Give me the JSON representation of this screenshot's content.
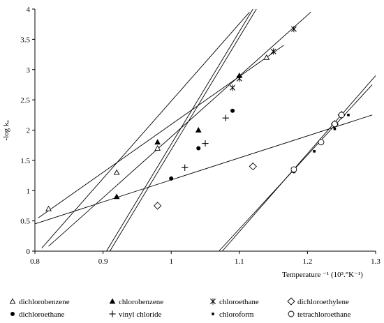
{
  "chart_data": {
    "type": "scatter",
    "ylabel": "-log kₒ",
    "xlabel": "Temperature ⁻¹ (10³.°K⁻¹)",
    "xlim": [
      0.8,
      1.3
    ],
    "ylim": [
      0,
      4
    ],
    "x_ticks": [
      "0.8",
      "0.9",
      "1",
      "1.1",
      "1.2",
      "1.3"
    ],
    "y_ticks": [
      "0",
      "0.5",
      "1",
      "1.5",
      "2",
      "2.5",
      "3",
      "3.5",
      "4"
    ],
    "grid": false,
    "legend_position": "bottom",
    "series": [
      {
        "name": "dichlorobenzene",
        "marker": "open-triangle",
        "points": [
          [
            0.82,
            0.7
          ],
          [
            0.92,
            1.3
          ],
          [
            0.98,
            1.7
          ],
          [
            1.14,
            3.2
          ]
        ],
        "fit": [
          [
            0.805,
            0.55
          ],
          [
            1.165,
            3.4
          ]
        ]
      },
      {
        "name": "chlorobenzene",
        "marker": "filled-triangle",
        "points": [
          [
            0.92,
            0.9
          ],
          [
            0.98,
            1.8
          ],
          [
            1.04,
            2.0
          ],
          [
            1.1,
            2.9
          ]
        ],
        "fit": [
          [
            0.81,
            0.05
          ],
          [
            1.115,
            3.95
          ]
        ]
      },
      {
        "name": "chloroethane",
        "marker": "x",
        "points": [
          [
            1.09,
            2.7
          ],
          [
            1.1,
            2.85
          ],
          [
            1.15,
            3.3
          ],
          [
            1.18,
            3.67
          ]
        ],
        "fit": [
          [
            0.82,
            0.08
          ],
          [
            1.205,
            3.95
          ]
        ]
      },
      {
        "name": "dichloroethylene",
        "marker": "open-diamond",
        "points": [
          [
            0.98,
            0.75
          ],
          [
            1.12,
            1.4
          ],
          [
            1.24,
            2.1
          ],
          [
            1.25,
            2.25
          ]
        ],
        "fit": [
          [
            0.8,
            0.45
          ],
          [
            1.295,
            2.25
          ]
        ]
      },
      {
        "name": "dichloroethane",
        "marker": "filled-circle",
        "points": [
          [
            1.0,
            1.2
          ],
          [
            1.04,
            1.7
          ],
          [
            1.09,
            2.32
          ],
          [
            1.18,
            1.32
          ]
        ],
        "fit": [
          [
            0.91,
            0.0
          ],
          [
            1.125,
            4.0
          ]
        ]
      },
      {
        "name": "vinyl chloride",
        "marker": "plus",
        "points": [
          [
            1.02,
            1.38
          ],
          [
            1.05,
            1.78
          ],
          [
            1.08,
            2.2
          ]
        ],
        "fit": [
          [
            0.905,
            0.0
          ],
          [
            1.12,
            4.0
          ]
        ]
      },
      {
        "name": "chloroform",
        "marker": "filled-square",
        "points": [
          [
            1.21,
            1.65
          ],
          [
            1.24,
            2.02
          ],
          [
            1.26,
            2.25
          ]
        ],
        "fit": [
          [
            1.07,
            0.0
          ],
          [
            1.295,
            2.75
          ]
        ]
      },
      {
        "name": "tetrachloroethane",
        "marker": "open-circle",
        "points": [
          [
            1.18,
            1.35
          ],
          [
            1.22,
            1.8
          ],
          [
            1.24,
            2.1
          ],
          [
            1.25,
            2.25
          ]
        ],
        "fit": [
          [
            1.075,
            0.0
          ],
          [
            1.3,
            2.9
          ]
        ]
      }
    ]
  }
}
